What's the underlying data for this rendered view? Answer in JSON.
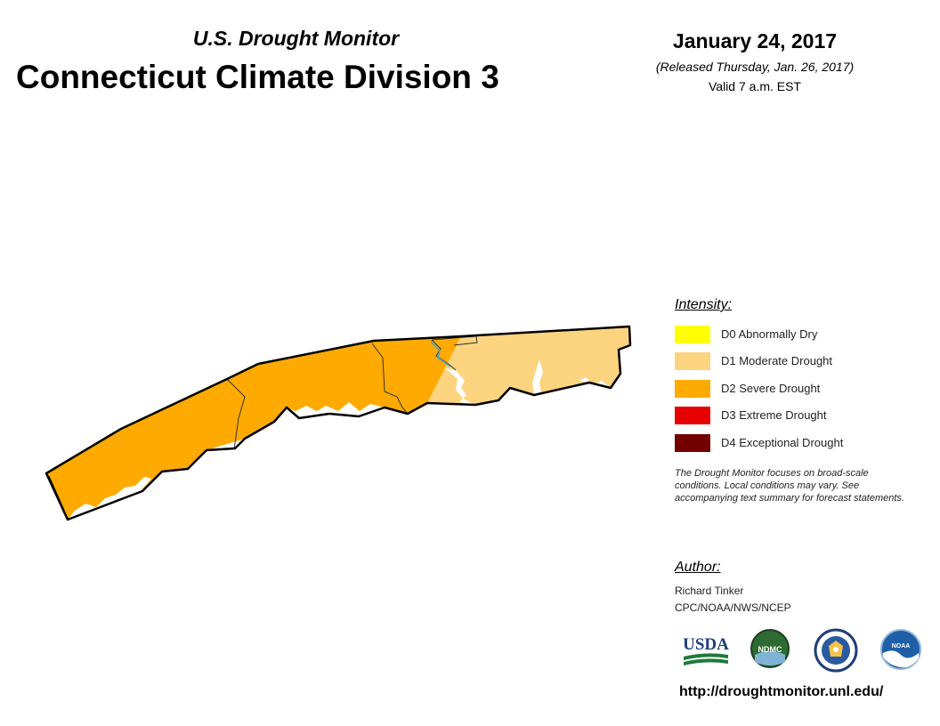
{
  "header": {
    "subtitle": "U.S. Drought Monitor",
    "title": "Connecticut Climate Division 3",
    "date": "January 24, 2017",
    "released": "(Released Thursday, Jan. 26, 2017)",
    "valid": "Valid 7 a.m. EST"
  },
  "legend": {
    "title": "Intensity:",
    "items": [
      {
        "label": "D0 Abnormally Dry",
        "color": "#ffff00"
      },
      {
        "label": "D1 Moderate Drought",
        "color": "#fcd37f"
      },
      {
        "label": "D2 Severe Drought",
        "color": "#ffaa00"
      },
      {
        "label": "D3 Extreme Drought",
        "color": "#e60000"
      },
      {
        "label": "D4 Exceptional Drought",
        "color": "#730000"
      }
    ],
    "note": "The Drought Monitor focuses on broad-scale conditions. Local conditions may vary. See accompanying text summary for forecast statements."
  },
  "author": {
    "title": "Author:",
    "name": "Richard Tinker",
    "org": "CPC/NOAA/NWS/NCEP"
  },
  "logos": {
    "usda": "USDA",
    "ndmc": "NDMC",
    "noaa": "NOAA"
  },
  "url": "http://droughtmonitor.unl.edu/",
  "map": {
    "regions": [
      {
        "category": "D2 Severe Drought",
        "color": "#ffaa00"
      },
      {
        "category": "D1 Moderate Drought",
        "color": "#fcd37f"
      }
    ]
  }
}
